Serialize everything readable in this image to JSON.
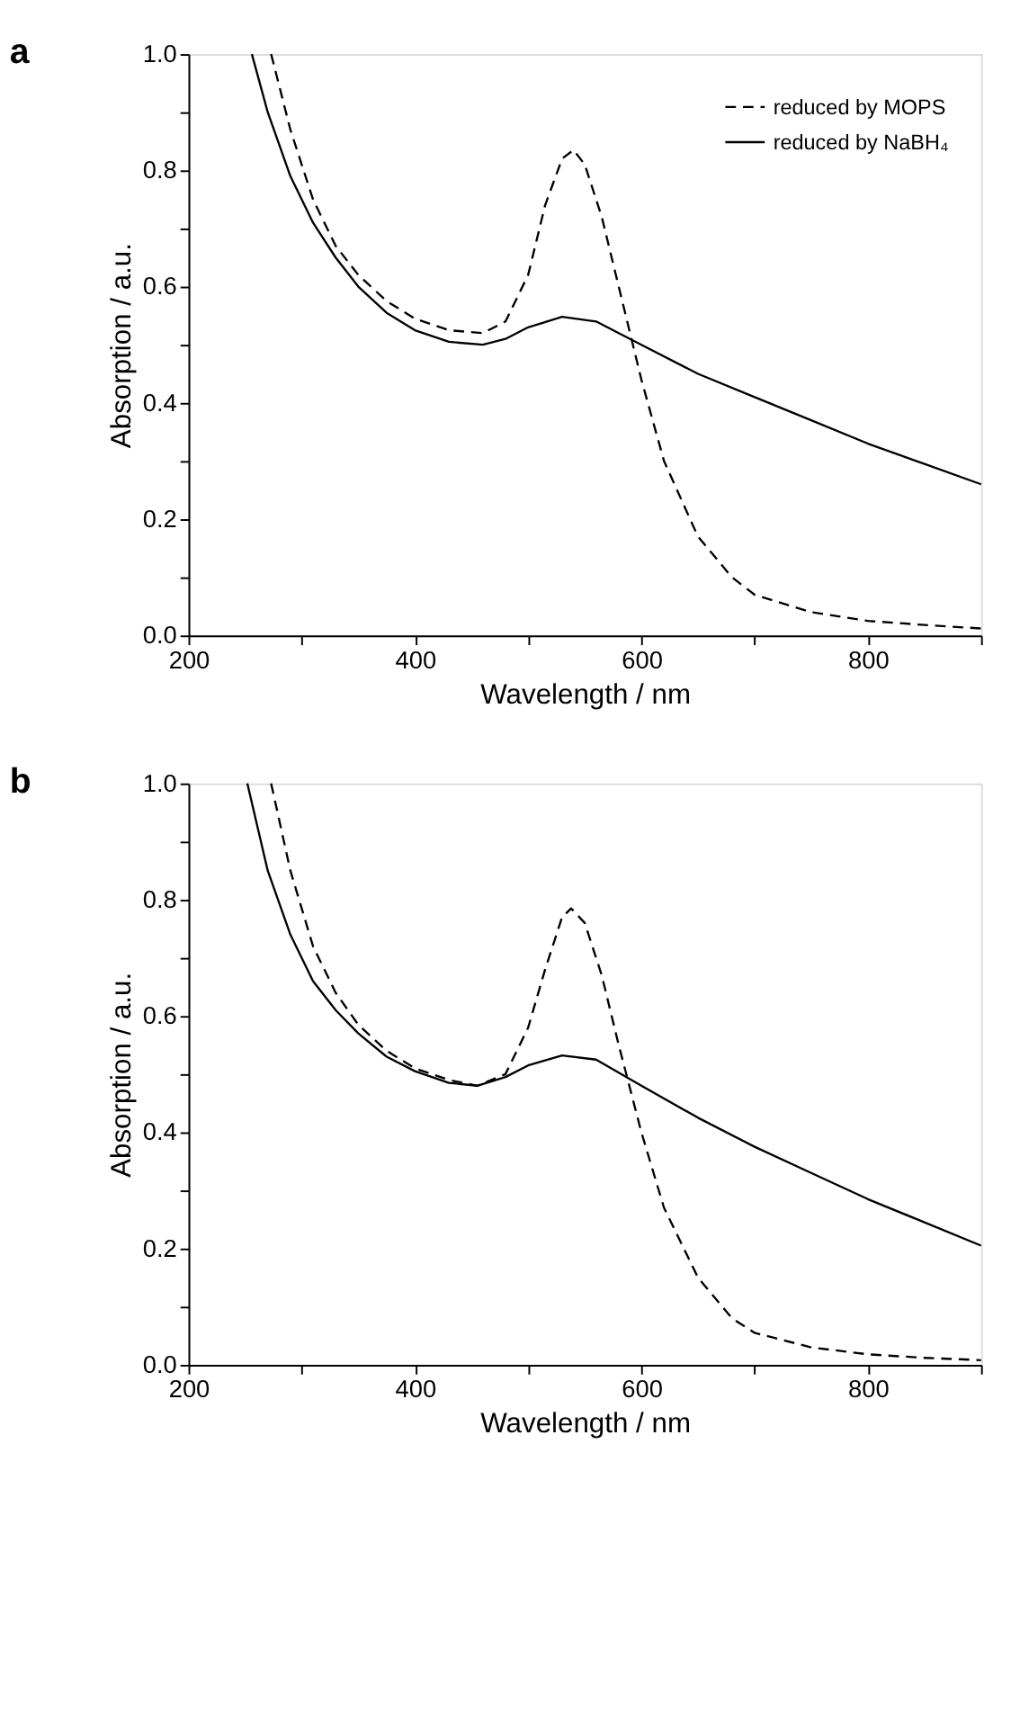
{
  "chart_data": [
    {
      "type": "line",
      "title": "a",
      "xlabel": "Wavelength / nm",
      "ylabel": "Absorption / a.u.",
      "xlim": [
        200,
        900
      ],
      "ylim": [
        0,
        1
      ],
      "xticks": [
        200,
        {
          "value": 300,
          "label": null
        },
        400,
        {
          "value": 500,
          "label": null
        },
        600,
        {
          "value": 700,
          "label": null
        },
        800,
        {
          "value": 900,
          "label": null
        }
      ],
      "yticks": [
        {
          "value": 0,
          "label": "0.0"
        },
        {
          "value": 0.1,
          "label": null
        },
        0.2,
        {
          "value": 0.3,
          "label": null
        },
        0.4,
        {
          "value": 0.5,
          "label": null
        },
        0.6,
        {
          "value": 0.7,
          "label": null
        },
        0.8,
        {
          "value": 0.9,
          "label": null
        },
        {
          "value": 1,
          "label": "1.0"
        }
      ],
      "grid": false,
      "legend": "top right",
      "marker": "none",
      "series": [
        {
          "name": "reduced by MOPS",
          "color": "#000000",
          "line_style": "dashed",
          "x": [
            273,
            290,
            310,
            330,
            350,
            375,
            400,
            430,
            460,
            480,
            500,
            515,
            530,
            540,
            550,
            565,
            580,
            600,
            620,
            650,
            680,
            700,
            750,
            800,
            850,
            900
          ],
          "values": [
            1.0,
            0.87,
            0.75,
            0.67,
            0.62,
            0.575,
            0.545,
            0.525,
            0.52,
            0.54,
            0.62,
            0.74,
            0.82,
            0.835,
            0.81,
            0.72,
            0.6,
            0.44,
            0.3,
            0.17,
            0.1,
            0.07,
            0.04,
            0.025,
            0.018,
            0.012
          ]
        },
        {
          "name": "reduced by NaBH₄",
          "color": "#000000",
          "line_style": "solid",
          "x": [
            256,
            270,
            290,
            310,
            330,
            350,
            375,
            400,
            430,
            460,
            480,
            500,
            530,
            560,
            600,
            650,
            700,
            750,
            800,
            850,
            900
          ],
          "values": [
            1.0,
            0.9,
            0.79,
            0.71,
            0.65,
            0.6,
            0.555,
            0.525,
            0.505,
            0.5,
            0.51,
            0.53,
            0.548,
            0.54,
            0.5,
            0.45,
            0.41,
            0.37,
            0.33,
            0.295,
            0.26
          ]
        }
      ]
    },
    {
      "type": "line",
      "title": "b",
      "xlabel": "Wavelength / nm",
      "ylabel": "Absorption / a.u.",
      "xlim": [
        200,
        900
      ],
      "ylim": [
        0,
        1
      ],
      "xticks": [
        200,
        {
          "value": 300,
          "label": null
        },
        400,
        {
          "value": 500,
          "label": null
        },
        600,
        {
          "value": 700,
          "label": null
        },
        800,
        {
          "value": 900,
          "label": null
        }
      ],
      "yticks": [
        {
          "value": 0,
          "label": "0.0"
        },
        {
          "value": 0.1,
          "label": null
        },
        0.2,
        {
          "value": 0.3,
          "label": null
        },
        0.4,
        {
          "value": 0.5,
          "label": null
        },
        0.6,
        {
          "value": 0.7,
          "label": null
        },
        0.8,
        {
          "value": 0.9,
          "label": null
        },
        {
          "value": 1,
          "label": "1.0"
        }
      ],
      "grid": false,
      "legend": "top right",
      "marker": "none",
      "series": [
        {
          "name": "reduced by MOPS",
          "color": "#000000",
          "line_style": "dashed",
          "x": [
            273,
            290,
            310,
            330,
            350,
            375,
            400,
            430,
            455,
            480,
            500,
            515,
            530,
            538,
            550,
            565,
            580,
            600,
            620,
            650,
            680,
            700,
            750,
            800,
            850,
            900
          ],
          "values": [
            1.0,
            0.85,
            0.72,
            0.64,
            0.585,
            0.54,
            0.51,
            0.49,
            0.48,
            0.5,
            0.58,
            0.68,
            0.77,
            0.785,
            0.76,
            0.67,
            0.55,
            0.4,
            0.27,
            0.15,
            0.08,
            0.055,
            0.03,
            0.018,
            0.012,
            0.008
          ]
        },
        {
          "name": "reduced by NaBH₄",
          "color": "#000000",
          "line_style": "solid",
          "x": [
            252,
            270,
            290,
            310,
            330,
            350,
            375,
            400,
            430,
            455,
            480,
            500,
            530,
            560,
            600,
            650,
            700,
            750,
            800,
            850,
            900
          ],
          "values": [
            1.0,
            0.85,
            0.74,
            0.66,
            0.61,
            0.57,
            0.53,
            0.505,
            0.485,
            0.48,
            0.495,
            0.515,
            0.532,
            0.525,
            0.48,
            0.425,
            0.375,
            0.33,
            0.285,
            0.245,
            0.205
          ]
        }
      ]
    }
  ]
}
